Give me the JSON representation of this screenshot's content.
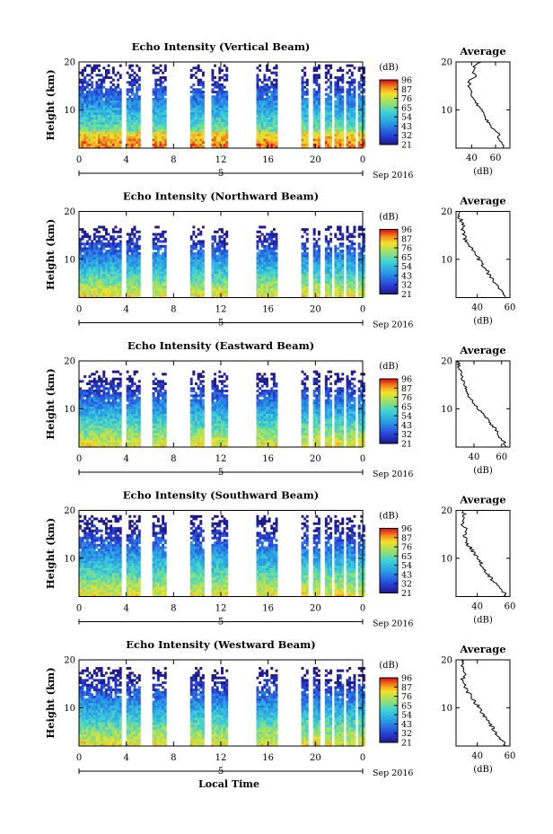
{
  "chart_data": [
    {
      "type": "heatmap",
      "title": "Echo Intensity (Vertical Beam)",
      "ylabel": "Height (km)",
      "ylim": [
        2,
        20
      ],
      "xlim": [
        0,
        24
      ],
      "x_ticks": [
        "0",
        "4",
        "8",
        "12",
        "16",
        "20",
        "0"
      ],
      "y_ticks": [
        "20",
        "10"
      ],
      "date_labels": [
        "5",
        "Sep 2016"
      ],
      "colorbar": {
        "unit": "(dB)",
        "ticks": [
          "96",
          "87",
          "76",
          "65",
          "54",
          "43",
          "32",
          "21"
        ]
      },
      "top_km": 19.5,
      "profile": {
        "title": "Average",
        "xlabel": "(dB)",
        "x_ticks": [
          "40",
          "60"
        ],
        "xlim": [
          27,
          72
        ],
        "heights": [
          2,
          3,
          4,
          5,
          6,
          7,
          8,
          9,
          10,
          11,
          12,
          13,
          14,
          15,
          16,
          17,
          18,
          19,
          20
        ],
        "values": [
          66,
          66,
          62,
          63,
          58,
          55,
          52,
          50,
          48,
          45,
          43,
          40,
          39,
          38,
          38,
          43,
          41,
          42,
          48
        ]
      }
    },
    {
      "type": "heatmap",
      "title": "Echo Intensity (Northward Beam)",
      "ylabel": "Height (km)",
      "ylim": [
        2,
        20
      ],
      "xlim": [
        0,
        24
      ],
      "x_ticks": [
        "0",
        "4",
        "8",
        "12",
        "16",
        "20",
        "0"
      ],
      "y_ticks": [
        "20",
        "10"
      ],
      "date_labels": [
        "5",
        "Sep 2016"
      ],
      "colorbar": {
        "unit": "(dB)",
        "ticks": [
          "96",
          "87",
          "76",
          "65",
          "54",
          "43",
          "32",
          "21"
        ]
      },
      "top_km": 17,
      "profile": {
        "title": "Average",
        "xlabel": "(dB)",
        "x_ticks": [
          "40",
          "60"
        ],
        "xlim": [
          27,
          60
        ],
        "heights": [
          2,
          3,
          4,
          5,
          6,
          7,
          8,
          9,
          10,
          11,
          12,
          13,
          14,
          15,
          16,
          17,
          18,
          19,
          20
        ],
        "values": [
          57,
          56,
          53,
          51,
          49,
          47,
          45,
          43,
          41,
          39,
          37,
          35,
          33,
          32,
          31,
          32,
          30,
          29,
          29
        ]
      }
    },
    {
      "type": "heatmap",
      "title": "Echo Intensity (Eastward Beam)",
      "ylabel": "Height (km)",
      "ylim": [
        2,
        20
      ],
      "xlim": [
        0,
        24
      ],
      "x_ticks": [
        "0",
        "4",
        "8",
        "12",
        "16",
        "20",
        "0"
      ],
      "y_ticks": [
        "20",
        "10"
      ],
      "date_labels": [
        "5",
        "Sep 2016"
      ],
      "colorbar": {
        "unit": "(dB)",
        "ticks": [
          "96",
          "87",
          "76",
          "65",
          "54",
          "43",
          "32",
          "21"
        ]
      },
      "top_km": 18,
      "profile": {
        "title": "Average",
        "xlabel": "(dB)",
        "x_ticks": [
          "40",
          "60"
        ],
        "xlim": [
          27,
          66
        ],
        "heights": [
          2,
          3,
          4,
          5,
          6,
          7,
          8,
          9,
          10,
          11,
          12,
          13,
          14,
          15,
          16,
          17,
          18,
          19,
          20
        ],
        "values": [
          63,
          62,
          59,
          57,
          55,
          52,
          49,
          46,
          43,
          40,
          38,
          36,
          34,
          33,
          32,
          31,
          30,
          29,
          29
        ]
      }
    },
    {
      "type": "heatmap",
      "title": "Echo Intensity (Southward Beam)",
      "ylabel": "Height (km)",
      "ylim": [
        2,
        20
      ],
      "xlim": [
        0,
        24
      ],
      "x_ticks": [
        "0",
        "4",
        "8",
        "12",
        "16",
        "20",
        "0"
      ],
      "y_ticks": [
        "20",
        "10"
      ],
      "date_labels": [
        "5",
        "Sep 2016"
      ],
      "colorbar": {
        "unit": "(dB)",
        "ticks": [
          "96",
          "87",
          "76",
          "65",
          "54",
          "43",
          "32",
          "21"
        ]
      },
      "top_km": 19,
      "profile": {
        "title": "Average",
        "xlabel": "(dB)",
        "x_ticks": [
          "40",
          "60"
        ],
        "xlim": [
          27,
          60
        ],
        "heights": [
          2,
          3,
          4,
          5,
          6,
          7,
          8,
          9,
          10,
          11,
          12,
          13,
          14,
          15,
          16,
          17,
          18,
          19,
          20
        ],
        "values": [
          57,
          56,
          53,
          50,
          48,
          46,
          44,
          42,
          40,
          38,
          36,
          34,
          33,
          32,
          33,
          31,
          32,
          32,
          31
        ]
      }
    },
    {
      "type": "heatmap",
      "title": "Echo Intensity (Westward Beam)",
      "ylabel": "Height (km)",
      "ylim": [
        2,
        20
      ],
      "xlim": [
        0,
        24
      ],
      "x_ticks": [
        "0",
        "4",
        "8",
        "12",
        "16",
        "20",
        "0"
      ],
      "y_ticks": [
        "20",
        "10"
      ],
      "date_labels": [
        "5",
        "Sep 2016"
      ],
      "colorbar": {
        "unit": "(dB)",
        "ticks": [
          "96",
          "87",
          "76",
          "65",
          "54",
          "43",
          "32",
          "21"
        ]
      },
      "top_km": 18.5,
      "profile": {
        "title": "Average",
        "xlabel": "(dB)",
        "x_ticks": [
          "40",
          "60"
        ],
        "xlim": [
          27,
          60
        ],
        "heights": [
          2,
          3,
          4,
          5,
          6,
          7,
          8,
          9,
          10,
          11,
          12,
          13,
          14,
          15,
          16,
          17,
          18,
          19,
          20
        ],
        "values": [
          57,
          56,
          53,
          51,
          49,
          47,
          45,
          43,
          41,
          39,
          37,
          35,
          33,
          32,
          31,
          32,
          31,
          31,
          30
        ]
      }
    }
  ],
  "x_axis_label": "Local Time",
  "data_gaps_hours": [
    [
      3.6,
      4.0
    ],
    [
      5.2,
      6.2
    ],
    [
      7.5,
      9.4
    ],
    [
      10.6,
      11.2
    ],
    [
      11.9,
      12.0
    ],
    [
      12.6,
      15.0
    ],
    [
      16.8,
      18.8
    ],
    [
      19.4,
      19.7
    ],
    [
      20.4,
      20.7
    ],
    [
      21.3,
      21.5
    ],
    [
      22.4,
      22.6
    ],
    [
      23.4,
      23.5
    ]
  ],
  "colors": {
    "low": "#1d1d8f",
    "mid": "#41b8d6",
    "high": "#e23a1a"
  }
}
